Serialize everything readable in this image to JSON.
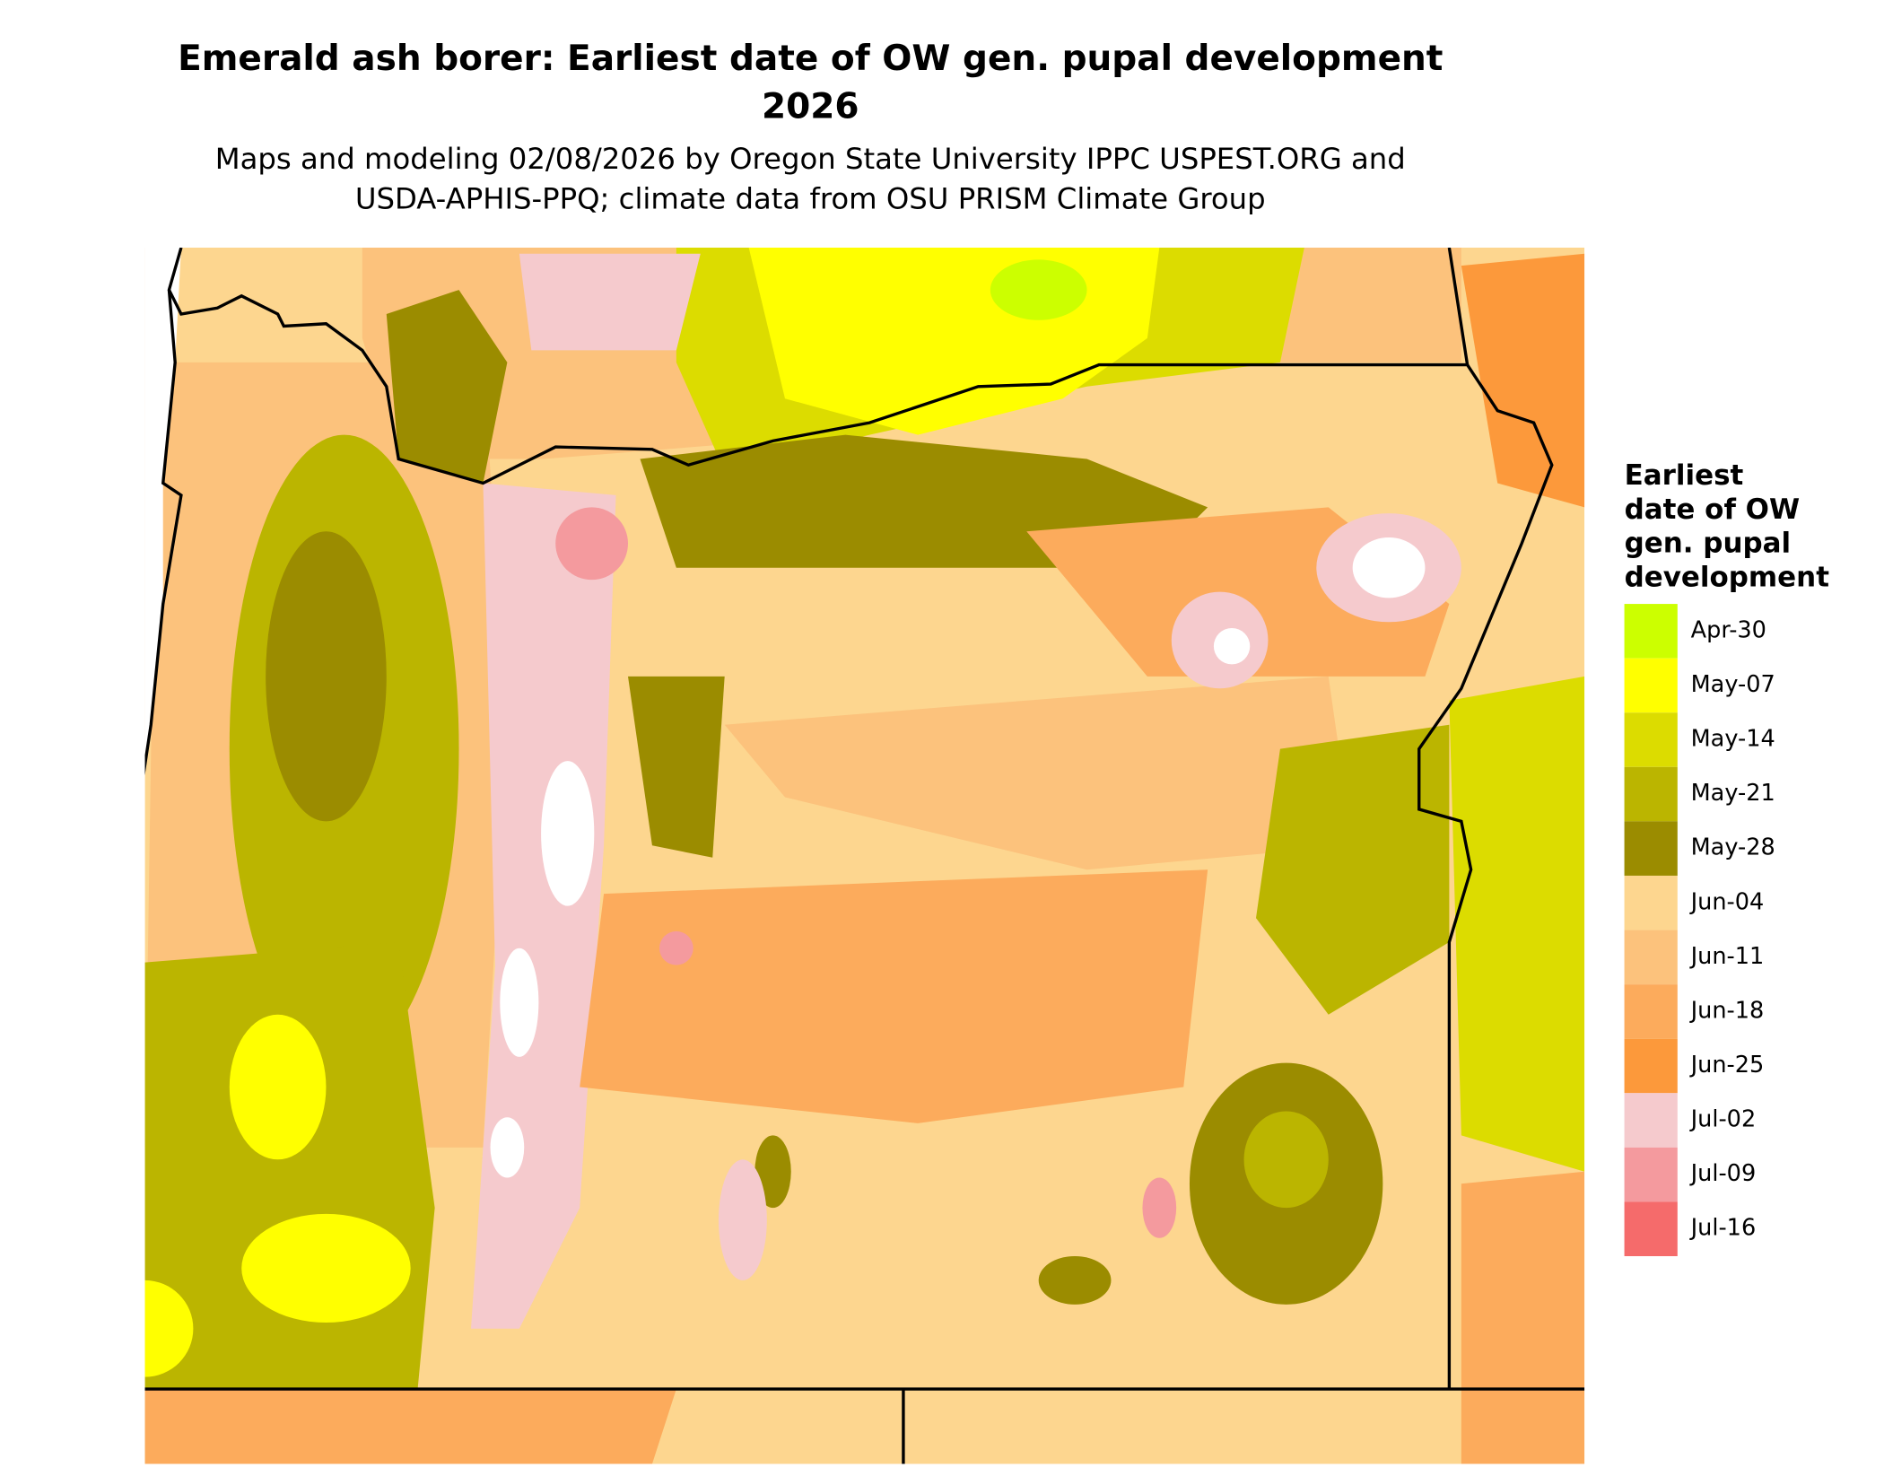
{
  "title": [
    "Emerald ash borer: Earliest date of OW gen. pupal development",
    "2026"
  ],
  "subtitle": [
    "Maps and modeling 02/08/2026 by Oregon State University IPPC USPEST.ORG and",
    "USDA-APHIS-PPQ; climate data from OSU PRISM Climate Group"
  ],
  "legend": {
    "title": [
      "Earliest",
      "date of OW",
      "gen. pupal",
      "development"
    ],
    "items": [
      {
        "label": "Apr-30",
        "color": "#ccff00"
      },
      {
        "label": "May-07",
        "color": "#ffff00"
      },
      {
        "label": "May-14",
        "color": "#dcdc00"
      },
      {
        "label": "May-21",
        "color": "#bbb500"
      },
      {
        "label": "May-28",
        "color": "#9b8c00"
      },
      {
        "label": "Jun-04",
        "color": "#fdd68f"
      },
      {
        "label": "Jun-11",
        "color": "#fcc27c"
      },
      {
        "label": "Jun-18",
        "color": "#fcab5c"
      },
      {
        "label": "Jun-25",
        "color": "#fc993b"
      },
      {
        "label": "Jul-02",
        "color": "#f5cacd"
      },
      {
        "label": "Jul-09",
        "color": "#f49a9e"
      },
      {
        "label": "Jul-16",
        "color": "#f56b6b"
      }
    ]
  }
}
